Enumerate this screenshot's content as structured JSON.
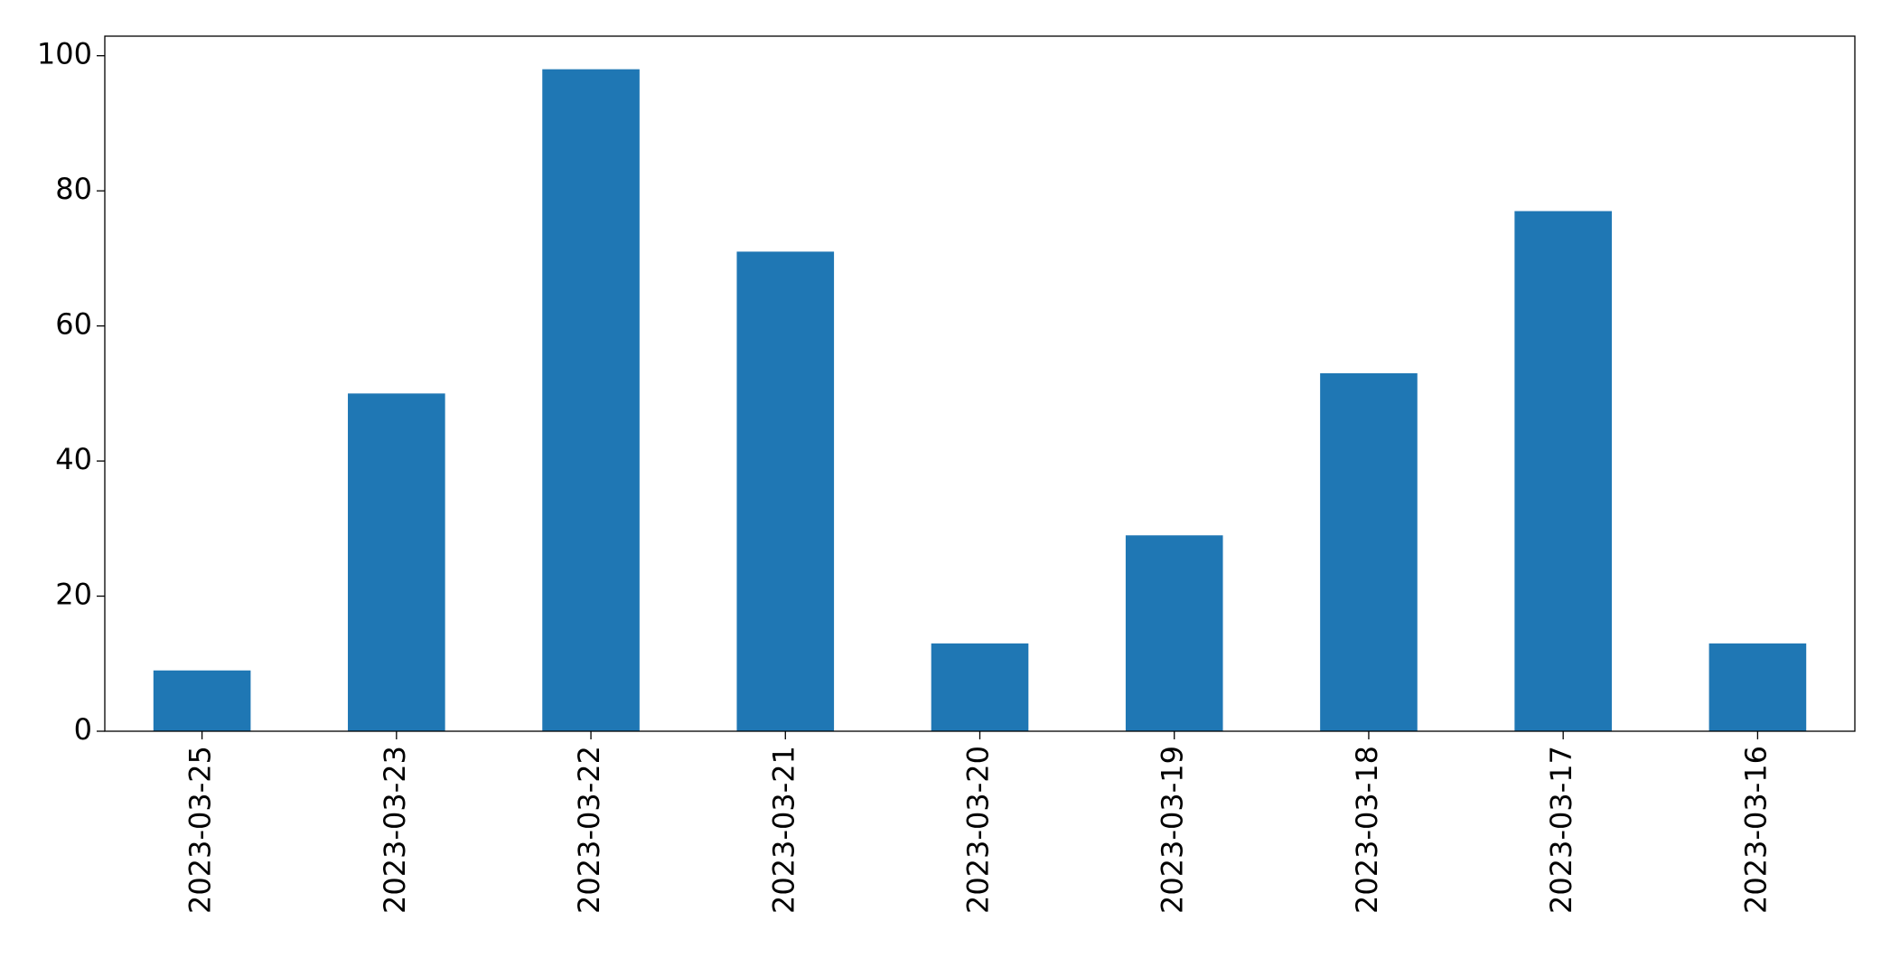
{
  "chart_data": {
    "type": "bar",
    "categories": [
      "2023-03-25",
      "2023-03-23",
      "2023-03-22",
      "2023-03-21",
      "2023-03-20",
      "2023-03-19",
      "2023-03-18",
      "2023-03-17",
      "2023-03-16"
    ],
    "values": [
      9,
      50,
      98,
      71,
      13,
      29,
      53,
      77,
      13
    ],
    "color": "#1f77b4",
    "ylim": [
      0,
      102.9
    ],
    "yticks": [
      0,
      20,
      40,
      60,
      80,
      100
    ],
    "grid": false
  }
}
